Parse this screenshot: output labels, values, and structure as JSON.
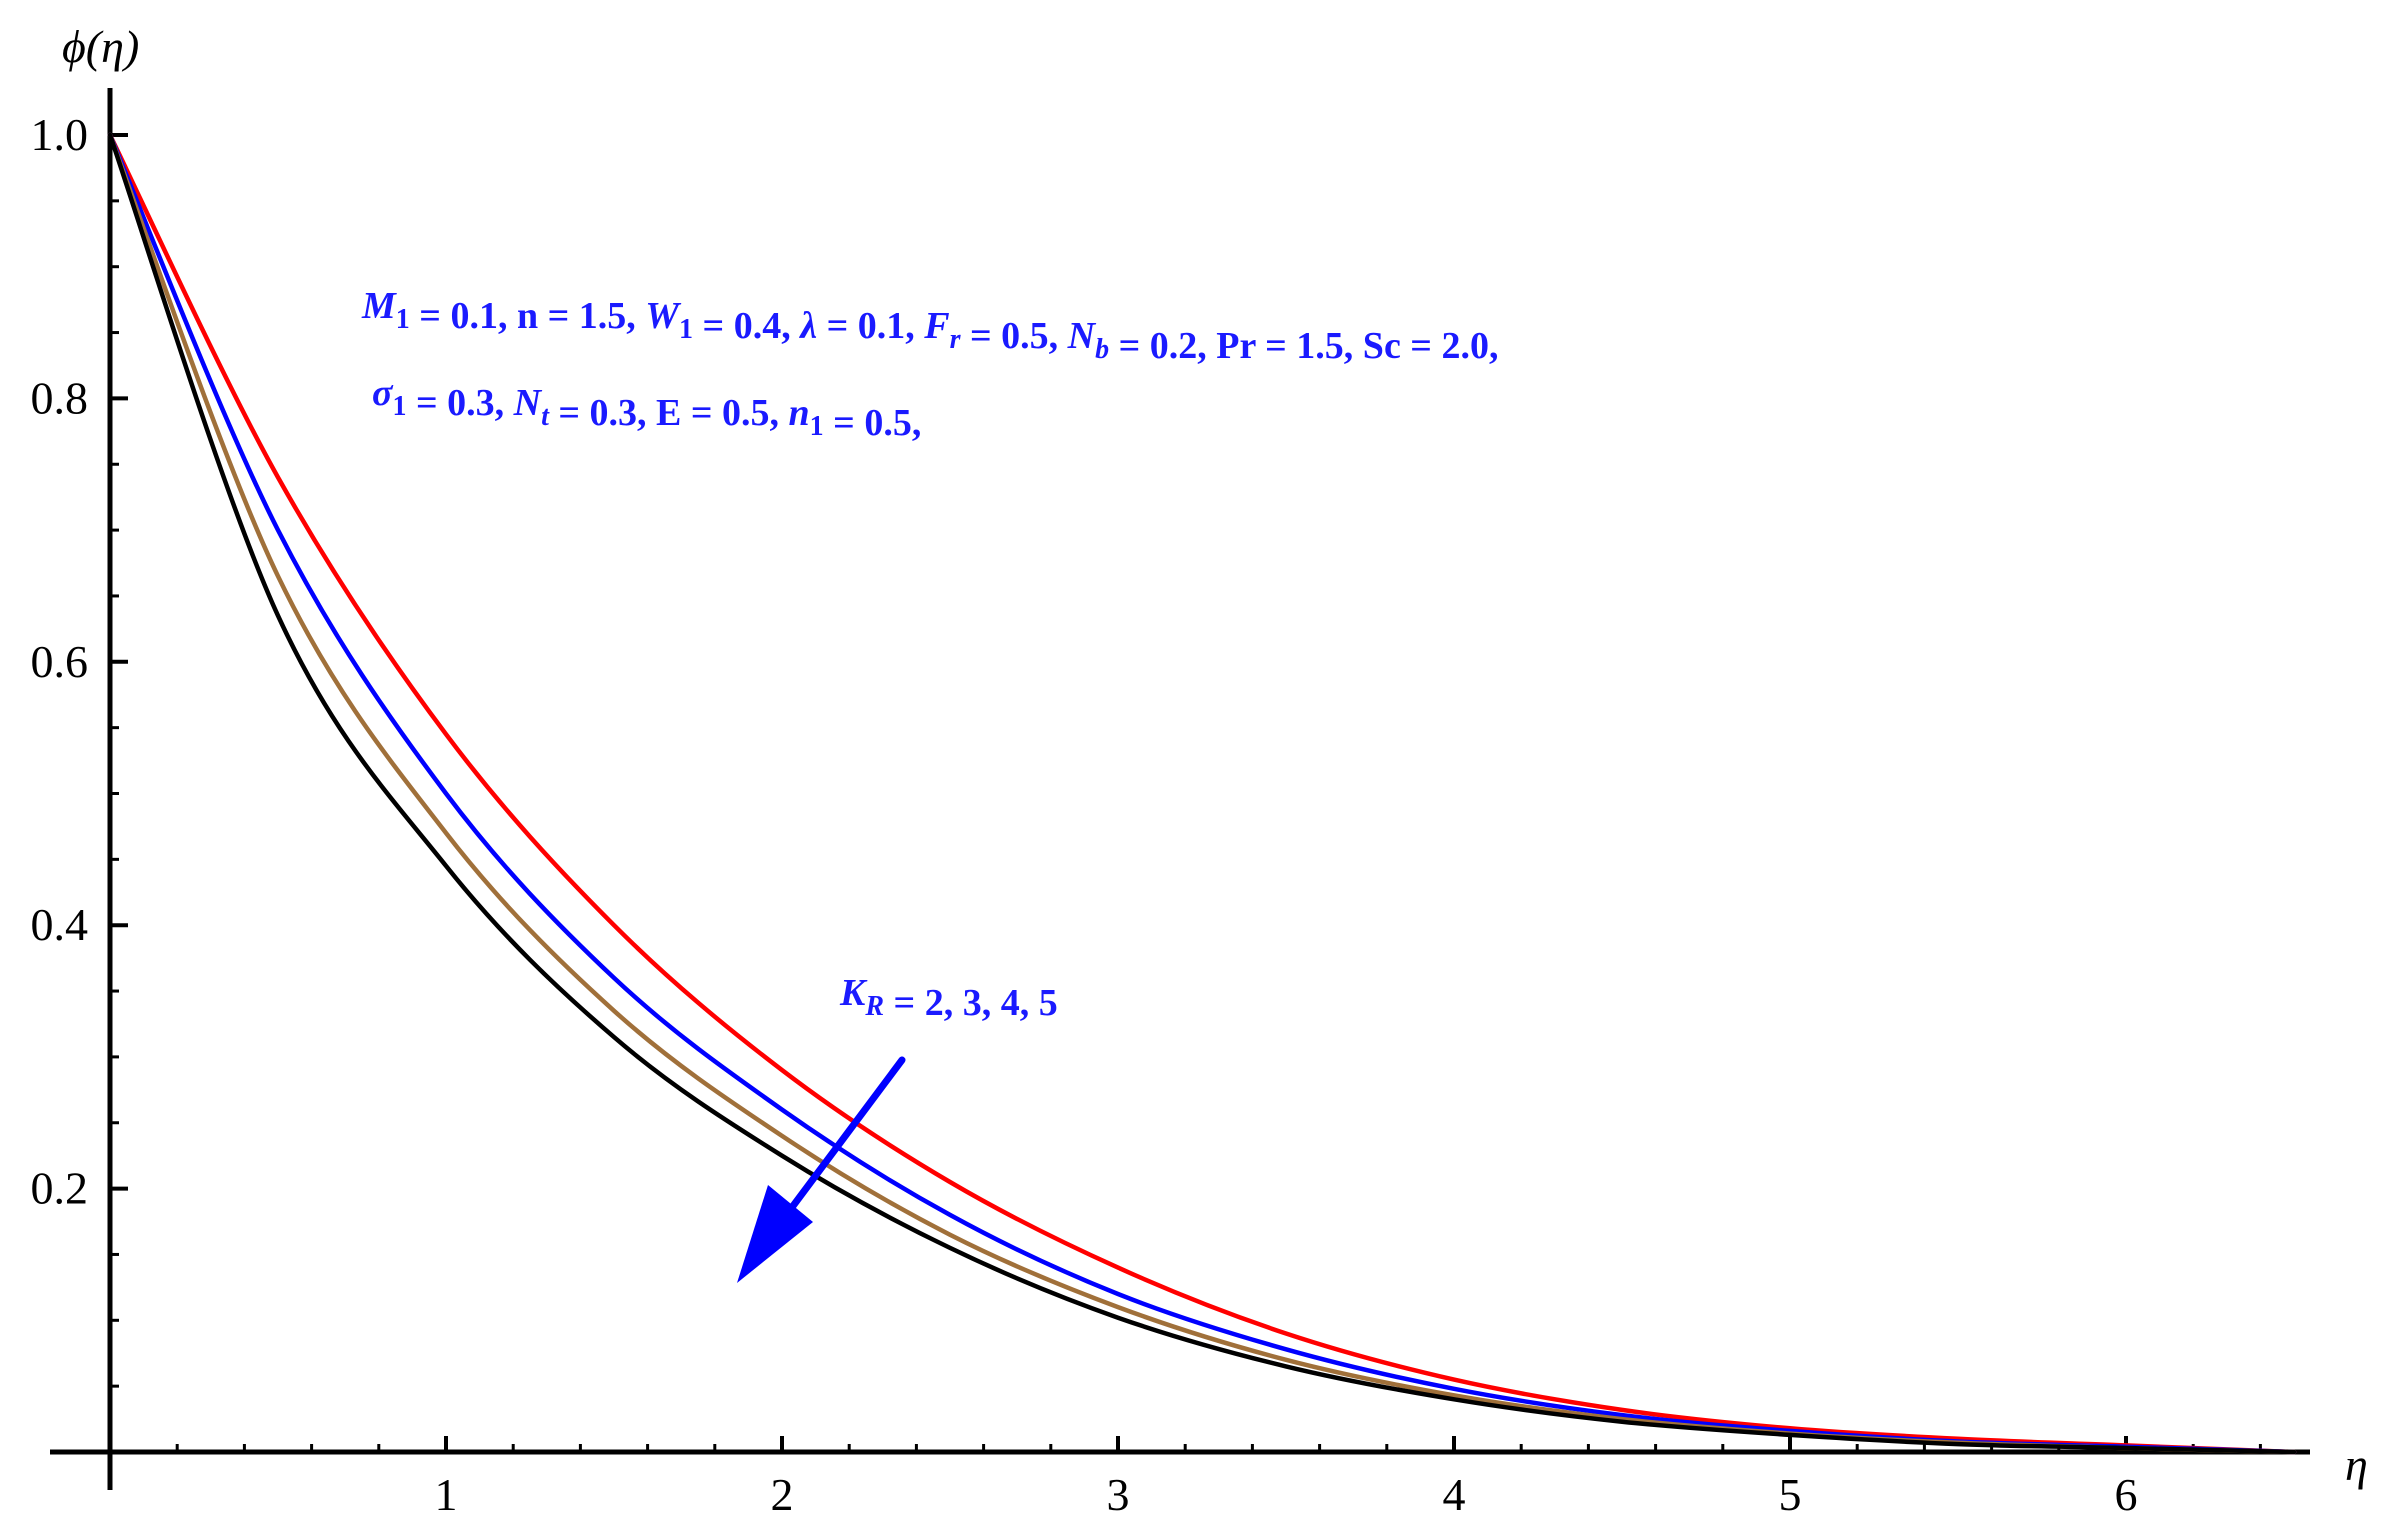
{
  "chart_data": {
    "type": "line",
    "xlabel": "η",
    "ylabel": "ϕ(η)",
    "xlim": [
      0,
      6.5
    ],
    "ylim": [
      0,
      1.0
    ],
    "x_ticks": [
      "1",
      "2",
      "3",
      "4",
      "5",
      "6"
    ],
    "y_ticks": [
      "0.2",
      "0.4",
      "0.6",
      "0.8",
      "1.0"
    ],
    "grid": false,
    "series": [
      {
        "color": "#ff0000",
        "x": [
          0,
          0.5,
          1,
          1.5,
          2,
          2.5,
          3,
          3.5,
          4,
          4.5,
          5,
          5.5,
          6,
          6.5
        ],
        "y": [
          1.0,
          0.74,
          0.545,
          0.4,
          0.29,
          0.205,
          0.14,
          0.09,
          0.055,
          0.032,
          0.018,
          0.01,
          0.005,
          0.0
        ]
      },
      {
        "color": "#0000ff",
        "x": [
          0,
          0.5,
          1,
          1.5,
          2,
          2.5,
          3,
          3.5,
          4,
          4.5,
          5,
          5.5,
          6,
          6.5
        ],
        "y": [
          1.0,
          0.7,
          0.5,
          0.36,
          0.26,
          0.18,
          0.12,
          0.078,
          0.048,
          0.028,
          0.016,
          0.008,
          0.004,
          0.0
        ]
      },
      {
        "color": "#a0703a",
        "x": [
          0,
          0.5,
          1,
          1.5,
          2,
          2.5,
          3,
          3.5,
          4,
          4.5,
          5,
          5.5,
          6,
          6.5
        ],
        "y": [
          1.0,
          0.665,
          0.47,
          0.335,
          0.24,
          0.165,
          0.11,
          0.07,
          0.043,
          0.025,
          0.014,
          0.007,
          0.003,
          0.0
        ]
      },
      {
        "color": "#000000",
        "x": [
          0,
          0.5,
          1,
          1.5,
          2,
          2.5,
          3,
          3.5,
          4,
          4.5,
          5,
          5.5,
          6,
          6.5
        ],
        "y": [
          1.0,
          0.635,
          0.445,
          0.315,
          0.225,
          0.155,
          0.102,
          0.065,
          0.04,
          0.023,
          0.013,
          0.006,
          0.003,
          0.0
        ]
      }
    ],
    "annotations": {
      "params_line1": [
        {
          "t": "M",
          "i": true
        },
        {
          "t": "1",
          "sub": true,
          "i": false
        },
        {
          "t": " =  0.1, n = 1.5, ",
          "i": false
        },
        {
          "t": "W",
          "i": true
        },
        {
          "t": "1",
          "sub": true,
          "i": false
        },
        {
          "t": " =  0.4,  ",
          "i": false
        },
        {
          "t": "λ",
          "i": true
        },
        {
          "t": " = 0.1, ",
          "i": false
        },
        {
          "t": "F",
          "i": true
        },
        {
          "t": "r",
          "sub": true,
          "i": true
        },
        {
          "t": " = 0.5, ",
          "i": false
        },
        {
          "t": "N",
          "i": true
        },
        {
          "t": "b",
          "sub": true,
          "i": true
        },
        {
          "t": " = 0.2, Pr = 1.5, Sc = 2.0,",
          "i": false
        }
      ],
      "params_line2": [
        {
          "t": "σ",
          "i": true
        },
        {
          "t": "1",
          "sub": true,
          "i": false
        },
        {
          "t": " = 0.3,  ",
          "i": false
        },
        {
          "t": "N",
          "i": true
        },
        {
          "t": "t",
          "sub": true,
          "i": true
        },
        {
          "t": " = 0.3,  E = 0.5, ",
          "i": false
        },
        {
          "t": "n",
          "i": true
        },
        {
          "t": "1",
          "sub": true,
          "i": false
        },
        {
          "t": " = 0.5,",
          "i": false
        }
      ],
      "kr_label": [
        {
          "t": "K",
          "i": true
        },
        {
          "t": "R",
          "sub": true,
          "i": true
        },
        {
          "t": " = 2, 3, 4, 5",
          "i": false
        }
      ],
      "arrow_color": "#0000ff"
    }
  }
}
